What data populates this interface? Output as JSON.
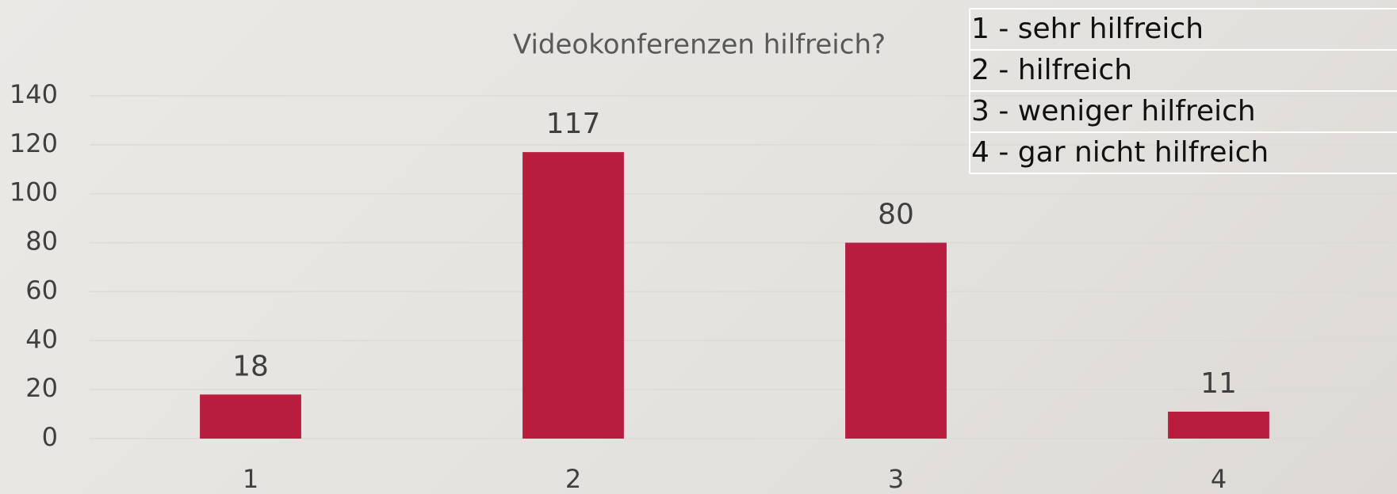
{
  "chart_data": {
    "type": "bar",
    "title": "Videokonferenzen hilfreich?",
    "categories": [
      "1",
      "2",
      "3",
      "4"
    ],
    "values": [
      18,
      117,
      80,
      11
    ],
    "color": "#b81d40",
    "ylim": [
      0,
      140
    ],
    "yticks": [
      0,
      20,
      40,
      60,
      80,
      100,
      120,
      140
    ],
    "grid": true,
    "annotations": [
      "1 - sehr hilfreich",
      "2 - hilfreich",
      "3 - weniger hilfreich",
      "4 - gar nicht hilfreich"
    ]
  }
}
